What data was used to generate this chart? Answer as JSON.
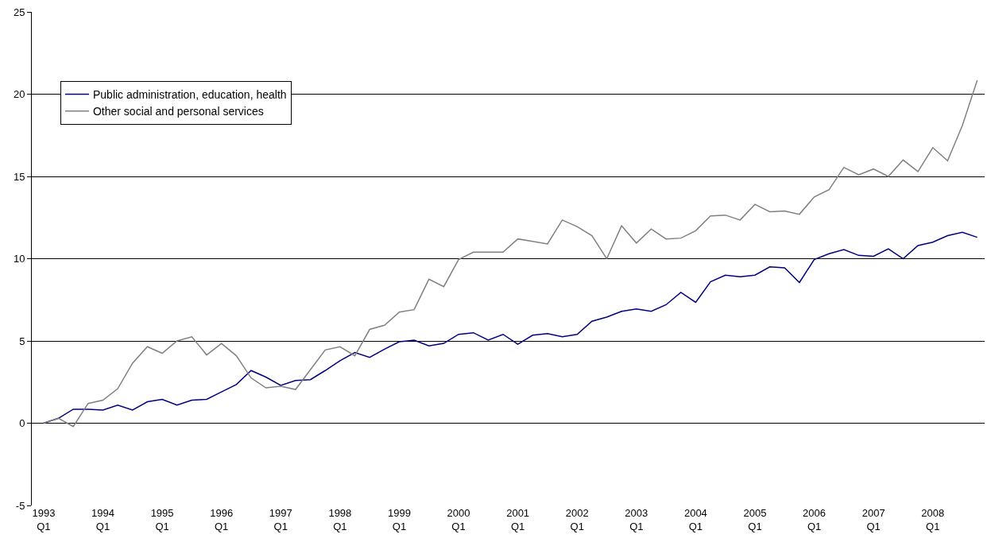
{
  "chart_data": {
    "type": "line",
    "categories": [
      "1993\nQ1",
      null,
      null,
      null,
      "1994\nQ1",
      null,
      null,
      null,
      "1995\nQ1",
      null,
      null,
      null,
      "1996\nQ1",
      null,
      null,
      null,
      "1997\nQ1",
      null,
      null,
      null,
      "1998\nQ1",
      null,
      null,
      null,
      "1999\nQ1",
      null,
      null,
      null,
      "2000\nQ1",
      null,
      null,
      null,
      "2001\nQ1",
      null,
      null,
      null,
      "2002\nQ1",
      null,
      null,
      null,
      "2003\nQ1",
      null,
      null,
      null,
      "2004\nQ1",
      null,
      null,
      null,
      "2005\nQ1",
      null,
      null,
      null,
      "2006\nQ1",
      null,
      null,
      null,
      "2007\nQ1",
      null,
      null,
      null,
      "2008\nQ1",
      null,
      null,
      null
    ],
    "series": [
      {
        "name": "Public administration, education, health",
        "color": "#000080",
        "values": [
          0,
          0.3,
          0.85,
          0.85,
          0.8,
          1.1,
          0.8,
          1.3,
          1.45,
          1.1,
          1.4,
          1.45,
          1.9,
          2.35,
          3.2,
          2.8,
          2.3,
          2.6,
          2.65,
          3.2,
          3.8,
          4.3,
          4.0,
          4.5,
          4.95,
          5.05,
          4.7,
          4.85,
          5.4,
          5.5,
          5.05,
          5.4,
          4.8,
          5.35,
          5.45,
          5.25,
          5.4,
          6.2,
          6.45,
          6.8,
          6.95,
          6.8,
          7.2,
          7.95,
          7.35,
          8.6,
          9.0,
          8.9,
          9.0,
          9.5,
          9.45,
          8.55,
          9.95,
          10.3,
          10.55,
          10.2,
          10.15,
          10.6,
          10.0,
          10.8,
          11.0,
          11.4,
          11.6,
          11.3
        ]
      },
      {
        "name": "Other social and personal services",
        "color": "#808080",
        "values": [
          0,
          0.3,
          -0.2,
          1.2,
          1.4,
          2.1,
          3.65,
          4.65,
          4.25,
          5.0,
          5.25,
          4.15,
          4.85,
          4.1,
          2.75,
          2.15,
          2.25,
          2.05,
          3.25,
          4.45,
          4.65,
          4.1,
          5.7,
          5.95,
          6.75,
          6.9,
          8.75,
          8.3,
          9.95,
          10.4,
          10.4,
          10.4,
          11.2,
          11.05,
          10.9,
          12.35,
          11.95,
          11.4,
          10.0,
          12.0,
          10.95,
          11.8,
          11.2,
          11.25,
          11.7,
          12.6,
          12.65,
          12.35,
          13.3,
          12.85,
          12.9,
          12.7,
          13.75,
          14.2,
          15.55,
          15.1,
          15.45,
          15.0,
          16.0,
          15.3,
          16.75,
          15.95,
          18.1,
          20.85
        ]
      }
    ],
    "ylim": [
      -5,
      25
    ],
    "yticks": [
      -5,
      0,
      5,
      10,
      15,
      20,
      25
    ],
    "grid": "y",
    "legend": "top left",
    "marker": "none",
    "line_style": "solid"
  }
}
